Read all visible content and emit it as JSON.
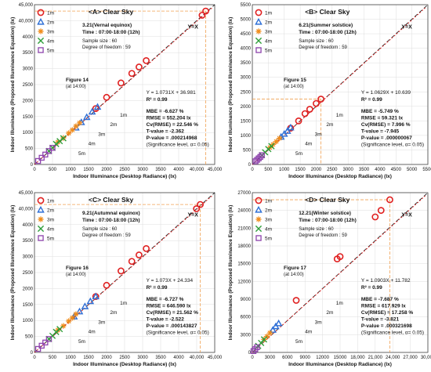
{
  "chart_data": [
    {
      "panel": "A",
      "type": "scatter",
      "title": "<A> Clear Sky",
      "date": "3.21(Vernal equinox)",
      "time": "Time : 07:00-18:00 (12h)",
      "sample": "Sample size : 60",
      "dof": "Degree of freedom : 59",
      "xlabel": "Indoor Illuminance (Desktop Radiance) (lx)",
      "ylabel": "Indoor Illuminance (Proposed Illuminance Equation) (lx)",
      "xlim": [
        0,
        45000
      ],
      "ylim": [
        0,
        45000
      ],
      "x_ticks": [
        "0",
        "500",
        "1000",
        "1500",
        "2000",
        "2500",
        "3000",
        "3500",
        "4000",
        "40,000",
        "45,000"
      ],
      "y_ticks": [
        "0",
        "500",
        "1000",
        "1500",
        "2000",
        "2500",
        "3000",
        "3500",
        "4000",
        "40,000",
        "45,000"
      ],
      "equation": "Y = 1.0731X + 36.981",
      "r2": "R² = 0.99",
      "stats": [
        "MBE = -6.627 %",
        "RMSE = 552.204 lx",
        "Cv(RMSE) = 22.546 %",
        "T-value = -2.362",
        "P-value = .000214968",
        "(Significance level, α= 0.05)"
      ],
      "figure_ref": "Figure 14",
      "figure_time": "(at 14:00)",
      "yx_label": "Y=X",
      "callouts": [
        "1m",
        "2m",
        "3m",
        "4m",
        "5m"
      ],
      "legend": [
        "1m",
        "2m",
        "3m",
        "4m",
        "5m"
      ],
      "series": [
        {
          "name": "1m",
          "x": [
            1700,
            2000,
            2400,
            2700,
            2900,
            3100,
            41500,
            42500
          ],
          "y": [
            1750,
            2100,
            2550,
            2850,
            3050,
            3250,
            41700,
            43000
          ]
        },
        {
          "name": "2m",
          "x": [
            1150,
            1300,
            1450,
            1600,
            1750
          ],
          "y": [
            1150,
            1320,
            1480,
            1650,
            1800
          ]
        },
        {
          "name": "3m",
          "x": [
            650,
            800,
            950,
            1050,
            1150,
            1250
          ],
          "y": [
            700,
            830,
            980,
            1080,
            1200,
            1300
          ]
        },
        {
          "name": "4m",
          "x": [
            400,
            500,
            600,
            700,
            800
          ],
          "y": [
            420,
            520,
            640,
            730,
            820
          ]
        },
        {
          "name": "5m",
          "x": [
            100,
            200,
            300,
            400,
            500
          ],
          "y": [
            110,
            210,
            310,
            420,
            520
          ]
        }
      ]
    },
    {
      "panel": "B",
      "type": "scatter",
      "title": "<B> Clear Sky",
      "date": "6.21(Summer solstice)",
      "time": "Time : 07:00-18:00 (12h)",
      "sample": "Sample size : 60",
      "dof": "Degree of freedom : 59",
      "xlabel": "Indoor Illuminance (Desktop Radiance) (lx)",
      "ylabel": "Indoor Illuminance (Proposed Illuminance Equation) (lx)",
      "xlim": [
        0,
        5500
      ],
      "ylim": [
        0,
        5500
      ],
      "x_ticks": [
        "0",
        "500",
        "1000",
        "1500",
        "2000",
        "2500",
        "3000",
        "3500",
        "4000",
        "4500",
        "5000",
        "5500"
      ],
      "y_ticks": [
        "0",
        "500",
        "1000",
        "1500",
        "2000",
        "2500",
        "3000",
        "3500",
        "4000",
        "4500",
        "5000",
        "5500"
      ],
      "equation": "Y = 1.0629X + 10.639",
      "r2": "R² = 0.99",
      "stats": [
        "MBE = -5.749 %",
        "RMSE = 59.321 lx",
        "Cv(RMSE) = 7.996 %",
        "T-value = -7.945",
        "P-value = .000000067",
        "(Significance level, α= 0.05)"
      ],
      "figure_ref": "Figure 15",
      "figure_time": "(at 14:00)",
      "yx_label": "Y=X",
      "callouts": [
        "1m",
        "2m",
        "3m",
        "4m",
        "5m"
      ],
      "legend": [
        "1m",
        "2m",
        "3m",
        "4m",
        "5m"
      ],
      "series": [
        {
          "name": "1m",
          "x": [
            1200,
            1450,
            1650,
            1800,
            2000,
            2150
          ],
          "y": [
            1250,
            1500,
            1750,
            1900,
            2100,
            2250
          ]
        },
        {
          "name": "2m",
          "x": [
            900,
            1000,
            1100,
            1200
          ],
          "y": [
            950,
            1050,
            1150,
            1270
          ]
        },
        {
          "name": "3m",
          "x": [
            550,
            650,
            750,
            850
          ],
          "y": [
            580,
            690,
            790,
            900
          ]
        },
        {
          "name": "4m",
          "x": [
            300,
            400,
            500,
            600
          ],
          "y": [
            320,
            420,
            530,
            630
          ]
        },
        {
          "name": "5m",
          "x": [
            100,
            150,
            200,
            250,
            300
          ],
          "y": [
            110,
            160,
            210,
            260,
            320
          ]
        }
      ]
    },
    {
      "panel": "C",
      "type": "scatter",
      "title": "<C> Clear Sky",
      "date": "9.21(Autumnal equinox)",
      "time": "Time : 07:00-18:00 (12h)",
      "sample": "Sample size : 60",
      "dof": "Degree of freedom : 59",
      "xlabel": "Indoor Illuminance (Desktop Radiance) (lx)",
      "ylabel": "Indoor Illuminance (Proposed Illuminance Equation) (lx)",
      "xlim": [
        0,
        45000
      ],
      "ylim": [
        0,
        45000
      ],
      "x_ticks": [
        "0",
        "500",
        "1000",
        "1500",
        "2000",
        "2500",
        "3000",
        "3500",
        "4000",
        "40,000",
        "45,000"
      ],
      "y_ticks": [
        "0",
        "500",
        "1000",
        "1500",
        "2000",
        "2500",
        "3000",
        "3500",
        "4000",
        "40,000",
        "45,000"
      ],
      "equation": "Y = 1.073X + 24.334",
      "r2": "R² = 0.99",
      "stats": [
        "MBE = -6.727 %",
        "RMSE = 646.590 lx",
        "Cv(RMSE) = 21.562 %",
        "T-value = -2.522",
        "P-value = .000143827",
        "(Significance level, α= 0.05)"
      ],
      "figure_ref": "Figure 16",
      "figure_time": "(at 14:00)",
      "yx_label": "Y=X",
      "callouts": [
        "1m",
        "2m",
        "3m",
        "4m",
        "5m"
      ],
      "legend": [
        "1m",
        "2m",
        "3m",
        "4m",
        "5m"
      ],
      "series": [
        {
          "name": "1m",
          "x": [
            1700,
            2000,
            2400,
            2700,
            2900,
            3100,
            39500,
            41000
          ],
          "y": [
            1750,
            2100,
            2550,
            2850,
            3050,
            3250,
            39800,
            41300
          ]
        },
        {
          "name": "2m",
          "x": [
            1100,
            1250,
            1400,
            1550,
            1700
          ],
          "y": [
            1120,
            1280,
            1440,
            1600,
            1750
          ]
        },
        {
          "name": "3m",
          "x": [
            650,
            800,
            950,
            1050,
            1150
          ],
          "y": [
            700,
            830,
            980,
            1080,
            1200
          ]
        },
        {
          "name": "4m",
          "x": [
            400,
            500,
            600,
            700
          ],
          "y": [
            420,
            520,
            640,
            730
          ]
        },
        {
          "name": "5m",
          "x": [
            100,
            200,
            300,
            400
          ],
          "y": [
            110,
            210,
            310,
            420
          ]
        }
      ]
    },
    {
      "panel": "D",
      "type": "scatter",
      "title": "<D> Clear Sky",
      "date": "12.21(Winter solstice)",
      "time": "Time : 07:00-18:00 (12h)",
      "sample": "Sample size : 60",
      "dof": "Degree of freedom : 59",
      "xlabel": "Indoor Illuminance (Desktop Radiance) (lx)",
      "ylabel": "Indoor Illuminance (Proposed Illuminance Equation) (lx)",
      "xlim": [
        0,
        30000
      ],
      "ylim": [
        0,
        27000
      ],
      "x_ticks": [
        "0",
        "3000",
        "6000",
        "9000",
        "12000",
        "15000",
        "18,000",
        "21,000",
        "24,000",
        "27,000",
        "30,000"
      ],
      "y_ticks": [
        "0",
        "3000",
        "6000",
        "9000",
        "12000",
        "15000",
        "18000",
        "21000",
        "24000",
        "27000"
      ],
      "equation": "Y = 1.0903X + 11.782",
      "r2": "R² = 0.99",
      "stats": [
        "MBE = -7.687 %",
        "RMSE = 617.929 lx",
        "Cv(RMSE) = 17.258 %",
        "T-value = -3.821",
        "P-value = .000321698",
        "(Significance level, α= 0.05)"
      ],
      "figure_ref": "Figure 17",
      "figure_time": "(at 14:00)",
      "yx_label": "Y=X",
      "callouts": [
        "1m",
        "2m",
        "3m",
        "4m",
        "5m"
      ],
      "legend": [
        "1m",
        "2m",
        "3m",
        "4m",
        "5m"
      ],
      "series": [
        {
          "name": "1m",
          "x": [
            7500,
            14500,
            15000,
            21000,
            22000,
            23500
          ],
          "y": [
            8800,
            15800,
            16200,
            22900,
            24000,
            25800
          ]
        },
        {
          "name": "2m",
          "x": [
            3500,
            4000,
            4500
          ],
          "y": [
            3800,
            4400,
            4900
          ]
        },
        {
          "name": "3m",
          "x": [
            2000,
            2500,
            3000
          ],
          "y": [
            2200,
            2700,
            3300
          ]
        },
        {
          "name": "4m",
          "x": [
            1000,
            1500,
            2000
          ],
          "y": [
            1100,
            1600,
            2200
          ]
        },
        {
          "name": "5m",
          "x": [
            200,
            500,
            800
          ],
          "y": [
            230,
            550,
            880
          ]
        }
      ]
    }
  ],
  "colors": {
    "s1": "#e02020",
    "s2": "#2e6fd6",
    "s3": "#f08c1a",
    "s4": "#2e9e3a",
    "s5": "#8e44ad",
    "fit": "#e02020",
    "yx": "#222222",
    "guide": "#f0a050",
    "grid": "#dddddd"
  }
}
